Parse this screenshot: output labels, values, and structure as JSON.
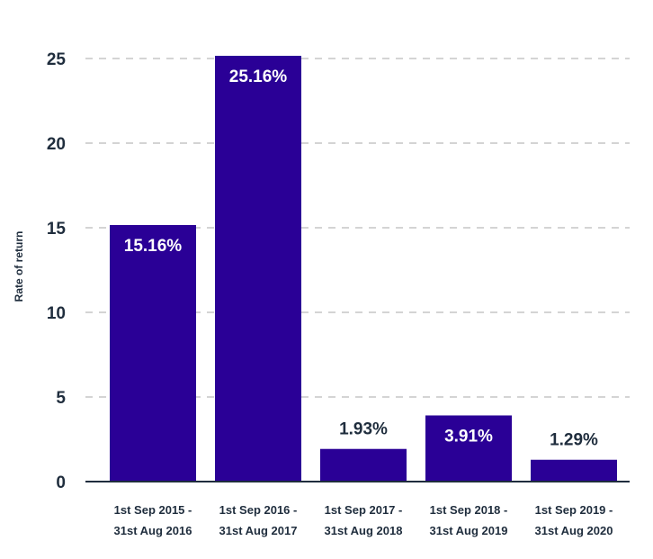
{
  "chart_data": {
    "type": "bar",
    "ylabel": "Rate of return",
    "ylim": [
      0,
      25
    ],
    "yticks": [
      0,
      5,
      10,
      15,
      20,
      25
    ],
    "grid": true,
    "categories": [
      [
        "1st Sep 2015 -",
        "31st Aug 2016"
      ],
      [
        "1st Sep 2016 -",
        "31st Aug 2017"
      ],
      [
        "1st Sep 2017 -",
        "31st Aug 2018"
      ],
      [
        "1st Sep 2018 -",
        "31st Aug 2019"
      ],
      [
        "1st Sep 2019 -",
        "31st Aug 2020"
      ]
    ],
    "values": [
      15.16,
      25.16,
      1.93,
      3.91,
      1.29
    ],
    "data_labels": [
      "15.16%",
      "25.16%",
      "1.93%",
      "3.91%",
      "1.29%"
    ],
    "bar_color": "#2a0096",
    "label_inside_color": "#ffffff",
    "label_outside_color": "#1f2d3d"
  }
}
